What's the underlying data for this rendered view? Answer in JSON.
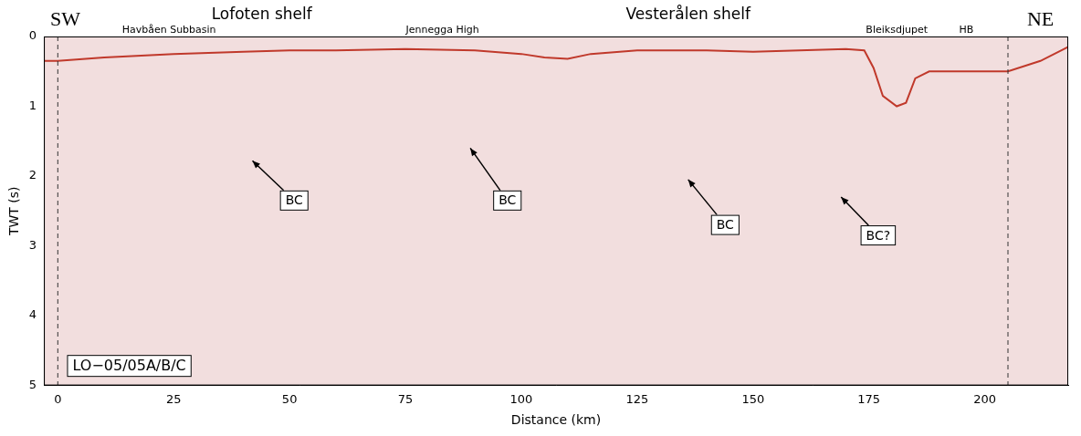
{
  "chart_data": {
    "type": "line",
    "x_label": "Distance (km)",
    "y_label": "TWT (s)",
    "x": [
      -3,
      0,
      10,
      25,
      40,
      50,
      60,
      75,
      90,
      100,
      105,
      110,
      115,
      125,
      140,
      150,
      160,
      170,
      174,
      176,
      178,
      181,
      183,
      185,
      188,
      192,
      200,
      205,
      212,
      218
    ],
    "values": [
      0.35,
      0.35,
      0.3,
      0.25,
      0.22,
      0.2,
      0.2,
      0.18,
      0.2,
      0.25,
      0.3,
      0.32,
      0.25,
      0.2,
      0.2,
      0.22,
      0.2,
      0.18,
      0.2,
      0.45,
      0.85,
      1.0,
      0.95,
      0.6,
      0.5,
      0.5,
      0.5,
      0.5,
      0.35,
      0.15
    ],
    "color": "#c0392b",
    "xlim": [
      -3,
      218
    ],
    "xticks": [
      0,
      25,
      50,
      75,
      100,
      125,
      150,
      175,
      200
    ],
    "ylim": [
      5,
      0
    ],
    "yticks": [
      0,
      1,
      2,
      3,
      4,
      5
    ],
    "grid": false,
    "boundaries": [
      0,
      205
    ],
    "header": [
      {
        "text": "SW",
        "x": 1.6,
        "kind": "edge"
      },
      {
        "text": "NE",
        "x": 212,
        "kind": "edge"
      },
      {
        "text": "Lofoten shelf",
        "x": 44,
        "kind": "major"
      },
      {
        "text": "Vesterålen shelf",
        "x": 136,
        "kind": "major"
      },
      {
        "text": "Havbåen Subbasin",
        "x": 24,
        "kind": "minor"
      },
      {
        "text": "Jennegga High",
        "x": 83,
        "kind": "minor"
      },
      {
        "text": "Bleiksdjupet",
        "x": 181,
        "kind": "minor"
      },
      {
        "text": "HB",
        "x": 196,
        "kind": "minor"
      }
    ],
    "annotations": [
      {
        "text": "BC",
        "x": 51,
        "y": 2.35,
        "target": [
          42,
          1.78
        ]
      },
      {
        "text": "BC",
        "x": 97,
        "y": 2.35,
        "target": [
          89,
          1.6
        ]
      },
      {
        "text": "BC",
        "x": 144,
        "y": 2.7,
        "target": [
          136,
          2.05
        ]
      },
      {
        "text": "BC?",
        "x": 177,
        "y": 2.85,
        "target": [
          169,
          2.3
        ]
      }
    ],
    "profile_label": {
      "text": "LO−05/05A/B/C",
      "x": 2,
      "y": 4.72
    }
  }
}
